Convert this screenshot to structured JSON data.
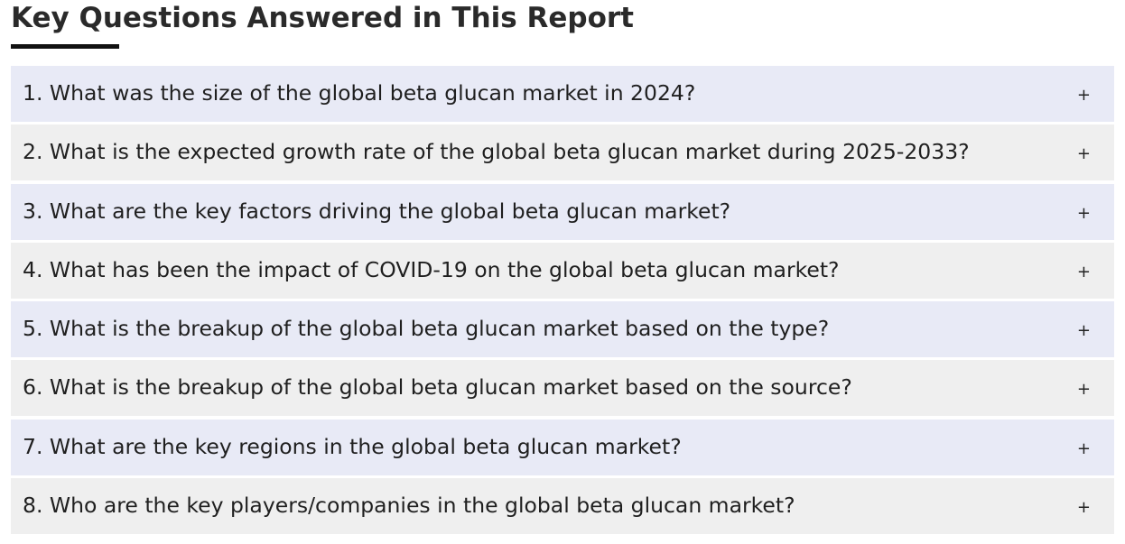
{
  "section": {
    "title": "Key Questions Answered in This Report"
  },
  "faq": {
    "toggle_symbol": "+",
    "items": [
      {
        "question": "1. What was the size of the global beta glucan market in 2024?"
      },
      {
        "question": "2. What is the expected growth rate of the global beta glucan market during 2025-2033?"
      },
      {
        "question": "3. What are the key factors driving the global beta glucan market?"
      },
      {
        "question": "4. What has been the impact of COVID-19 on the global beta glucan market?"
      },
      {
        "question": "5. What is the breakup of the global beta glucan market based on the type?"
      },
      {
        "question": "6. What is the breakup of the global beta glucan market based on the source?"
      },
      {
        "question": "7. What are the key regions in the global beta glucan market?"
      },
      {
        "question": "8. Who are the key players/companies in the global beta glucan market?"
      }
    ]
  },
  "colors": {
    "row_odd": "#e8eaf6",
    "row_even": "#efefef",
    "underline": "#111111"
  }
}
